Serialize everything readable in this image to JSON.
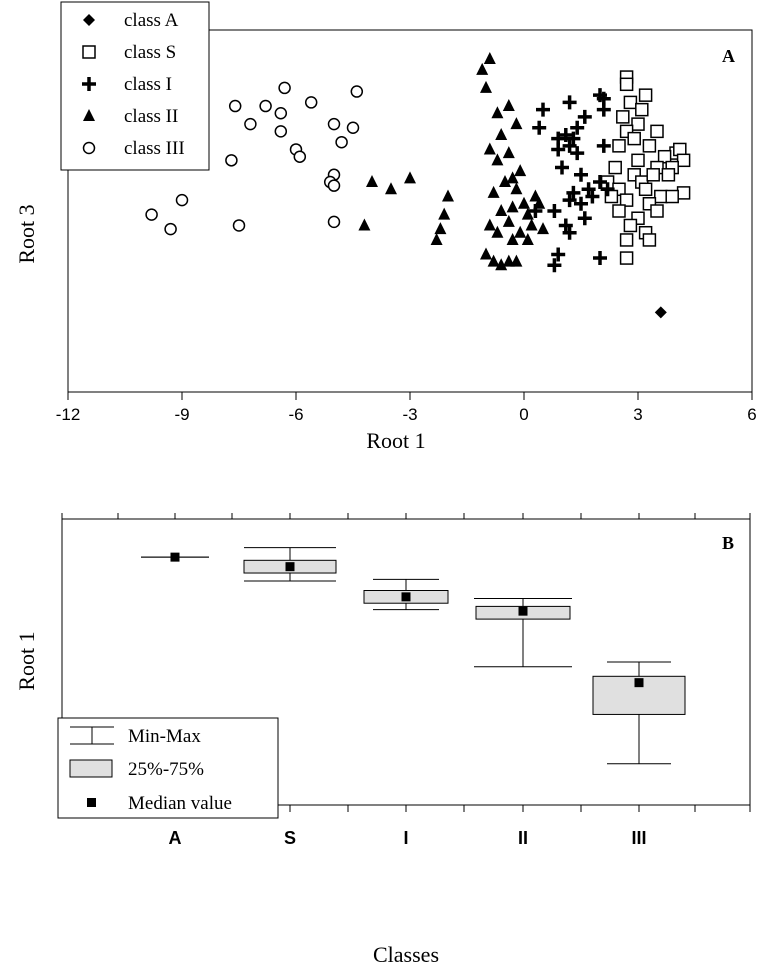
{
  "chart_data": [
    {
      "type": "scatter",
      "panel_label": "A",
      "xlabel": "Root 1",
      "ylabel": "Root 3",
      "xlim": [
        -12,
        6
      ],
      "ylim": [
        0,
        1
      ],
      "xticks": [
        "-12",
        "-9",
        "-6",
        "-3",
        "0",
        "3",
        "6"
      ],
      "legend_placement": "top-left",
      "series": [
        {
          "name": "class A",
          "marker": "diamond",
          "points": [
            [
              3.6,
              0.22
            ]
          ]
        },
        {
          "name": "class S",
          "marker": "square",
          "points": [
            [
              2.7,
              0.87
            ],
            [
              2.7,
              0.85
            ],
            [
              3.2,
              0.82
            ],
            [
              2.8,
              0.8
            ],
            [
              3.1,
              0.78
            ],
            [
              2.6,
              0.76
            ],
            [
              3.0,
              0.74
            ],
            [
              2.7,
              0.72
            ],
            [
              3.5,
              0.72
            ],
            [
              2.9,
              0.7
            ],
            [
              3.3,
              0.68
            ],
            [
              4.0,
              0.66
            ],
            [
              4.1,
              0.67
            ],
            [
              3.7,
              0.65
            ],
            [
              4.2,
              0.64
            ],
            [
              2.5,
              0.68
            ],
            [
              3.0,
              0.64
            ],
            [
              3.9,
              0.62
            ],
            [
              2.4,
              0.62
            ],
            [
              3.5,
              0.62
            ],
            [
              2.9,
              0.6
            ],
            [
              3.8,
              0.6
            ],
            [
              2.2,
              0.58
            ],
            [
              3.1,
              0.58
            ],
            [
              3.4,
              0.6
            ],
            [
              2.5,
              0.56
            ],
            [
              3.2,
              0.56
            ],
            [
              2.3,
              0.54
            ],
            [
              3.6,
              0.54
            ],
            [
              4.2,
              0.55
            ],
            [
              2.7,
              0.53
            ],
            [
              3.9,
              0.54
            ],
            [
              3.3,
              0.52
            ],
            [
              2.5,
              0.5
            ],
            [
              3.5,
              0.5
            ],
            [
              3.0,
              0.48
            ],
            [
              2.8,
              0.46
            ],
            [
              3.2,
              0.44
            ],
            [
              2.7,
              0.42
            ],
            [
              3.3,
              0.42
            ],
            [
              2.7,
              0.37
            ]
          ]
        },
        {
          "name": "class I",
          "marker": "plus",
          "points": [
            [
              2.0,
              0.82
            ],
            [
              2.1,
              0.81
            ],
            [
              2.1,
              0.78
            ],
            [
              1.2,
              0.8
            ],
            [
              0.5,
              0.78
            ],
            [
              1.6,
              0.76
            ],
            [
              0.4,
              0.73
            ],
            [
              1.4,
              0.73
            ],
            [
              1.1,
              0.71
            ],
            [
              1.3,
              0.7
            ],
            [
              0.9,
              0.7
            ],
            [
              2.1,
              0.68
            ],
            [
              1.2,
              0.68
            ],
            [
              0.9,
              0.67
            ],
            [
              1.4,
              0.66
            ],
            [
              1.0,
              0.62
            ],
            [
              1.5,
              0.6
            ],
            [
              2.0,
              0.58
            ],
            [
              2.2,
              0.56
            ],
            [
              1.7,
              0.56
            ],
            [
              1.3,
              0.55
            ],
            [
              1.8,
              0.54
            ],
            [
              1.2,
              0.53
            ],
            [
              1.5,
              0.52
            ],
            [
              0.8,
              0.5
            ],
            [
              1.6,
              0.48
            ],
            [
              0.3,
              0.5
            ],
            [
              1.1,
              0.46
            ],
            [
              1.2,
              0.44
            ],
            [
              0.9,
              0.38
            ],
            [
              0.8,
              0.35
            ],
            [
              2.0,
              0.37
            ]
          ]
        },
        {
          "name": "class II",
          "marker": "triangle",
          "points": [
            [
              -0.9,
              0.92
            ],
            [
              -1.1,
              0.89
            ],
            [
              -1.0,
              0.84
            ],
            [
              -0.4,
              0.79
            ],
            [
              -0.7,
              0.77
            ],
            [
              -0.2,
              0.74
            ],
            [
              -0.6,
              0.71
            ],
            [
              -0.9,
              0.67
            ],
            [
              -0.7,
              0.64
            ],
            [
              -0.4,
              0.66
            ],
            [
              -0.3,
              0.59
            ],
            [
              -0.1,
              0.61
            ],
            [
              -0.5,
              0.58
            ],
            [
              -0.2,
              0.56
            ],
            [
              0.3,
              0.54
            ],
            [
              -0.8,
              0.55
            ],
            [
              0.0,
              0.52
            ],
            [
              0.4,
              0.52
            ],
            [
              -0.3,
              0.51
            ],
            [
              0.1,
              0.49
            ],
            [
              -0.6,
              0.5
            ],
            [
              -0.4,
              0.47
            ],
            [
              0.2,
              0.46
            ],
            [
              -0.1,
              0.44
            ],
            [
              0.5,
              0.45
            ],
            [
              -0.9,
              0.46
            ],
            [
              -0.7,
              0.44
            ],
            [
              -0.3,
              0.42
            ],
            [
              0.1,
              0.42
            ],
            [
              -1.0,
              0.38
            ],
            [
              -0.8,
              0.36
            ],
            [
              -0.6,
              0.35
            ],
            [
              -0.4,
              0.36
            ],
            [
              -0.2,
              0.36
            ],
            [
              -3.0,
              0.59
            ],
            [
              -2.0,
              0.54
            ],
            [
              -2.1,
              0.49
            ],
            [
              -2.2,
              0.45
            ],
            [
              -2.3,
              0.42
            ],
            [
              -4.0,
              0.58
            ],
            [
              -3.5,
              0.56
            ],
            [
              -4.2,
              0.46
            ]
          ]
        },
        {
          "name": "class III",
          "marker": "circle",
          "points": [
            [
              -9.0,
              0.83
            ],
            [
              -6.3,
              0.84
            ],
            [
              -4.4,
              0.83
            ],
            [
              -7.6,
              0.79
            ],
            [
              -6.8,
              0.79
            ],
            [
              -5.6,
              0.8
            ],
            [
              -6.4,
              0.77
            ],
            [
              -7.2,
              0.74
            ],
            [
              -5.0,
              0.74
            ],
            [
              -4.5,
              0.73
            ],
            [
              -6.4,
              0.72
            ],
            [
              -4.8,
              0.69
            ],
            [
              -6.0,
              0.67
            ],
            [
              -5.9,
              0.65
            ],
            [
              -7.7,
              0.64
            ],
            [
              -5.0,
              0.6
            ],
            [
              -5.1,
              0.58
            ],
            [
              -5.0,
              0.57
            ],
            [
              -9.0,
              0.53
            ],
            [
              -9.8,
              0.49
            ],
            [
              -9.3,
              0.45
            ],
            [
              -7.5,
              0.46
            ],
            [
              -5.0,
              0.47
            ]
          ]
        }
      ]
    },
    {
      "type": "box",
      "panel_label": "B",
      "xlabel": "Classes",
      "ylabel": "Root 1",
      "categories": [
        "A",
        "S",
        "I",
        "II",
        "III"
      ],
      "ylim": [
        -12,
        6
      ],
      "boxes": [
        {
          "category": "A",
          "min": 3.6,
          "q1": 3.6,
          "median": 3.6,
          "q3": 3.6,
          "max": 3.6
        },
        {
          "category": "S",
          "min": 2.1,
          "q1": 2.6,
          "median": 3.0,
          "q3": 3.4,
          "max": 4.2
        },
        {
          "category": "I",
          "min": 0.3,
          "q1": 0.7,
          "median": 1.1,
          "q3": 1.5,
          "max": 2.2
        },
        {
          "category": "II",
          "min": -3.3,
          "q1": -0.3,
          "median": 0.2,
          "q3": 0.5,
          "max": 1.0
        },
        {
          "category": "III",
          "min": -9.4,
          "q1": -6.3,
          "median": -4.3,
          "q3": -3.9,
          "max": -3.0
        }
      ],
      "legend_placement": "middle-left",
      "legend": {
        "minmax_label": "Min-Max",
        "iqr_label": "25%-75%",
        "median_label": "Median value"
      },
      "colors": {
        "box_fill": "#e0e0e0",
        "median_marker": "#000000"
      }
    }
  ]
}
